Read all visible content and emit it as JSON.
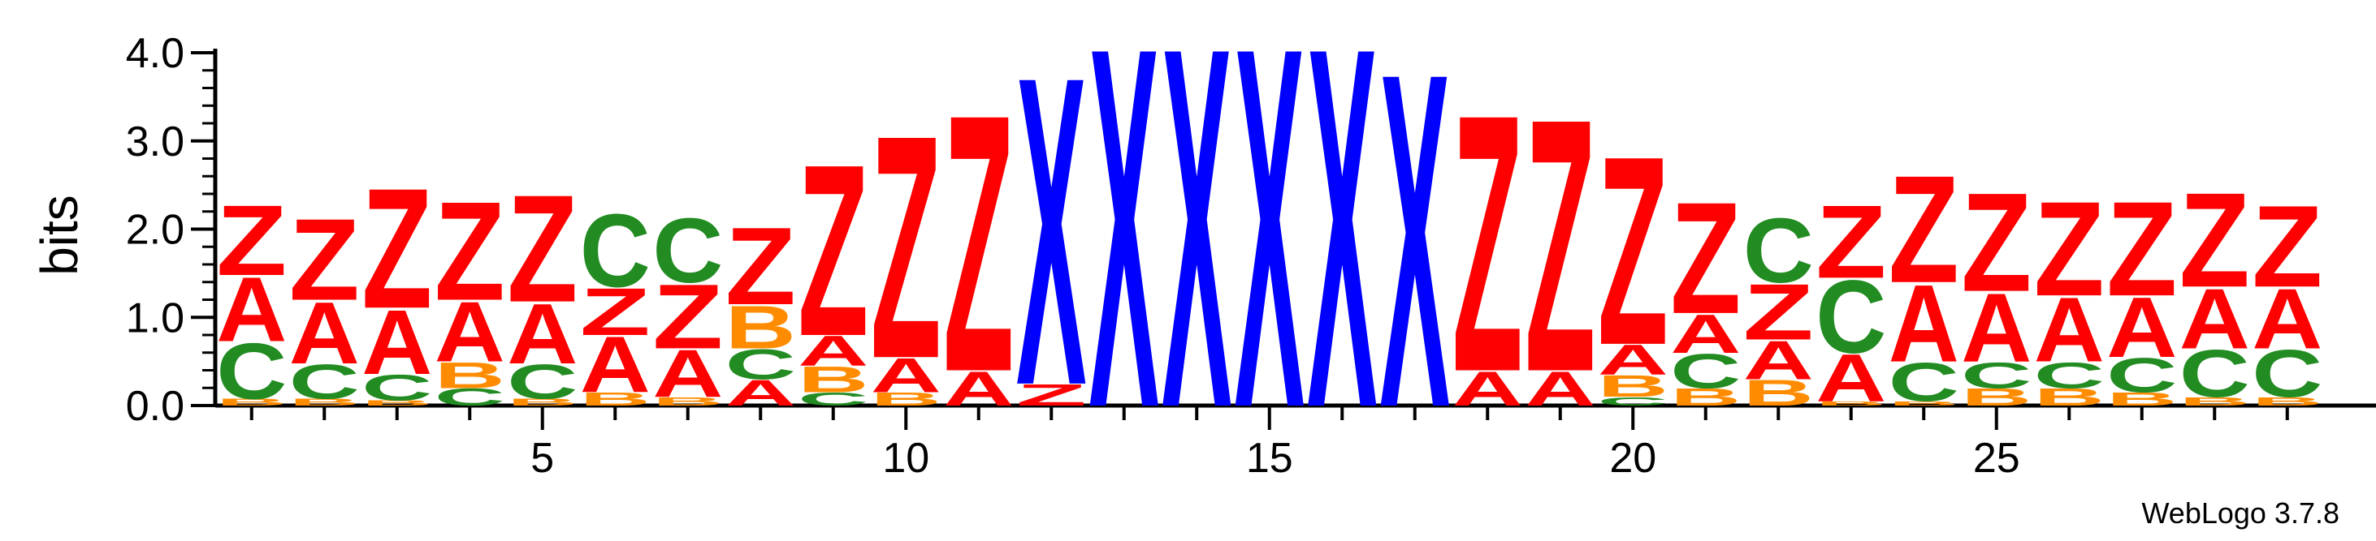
{
  "chart_data": {
    "type": "sequence_logo",
    "ylabel": "bits",
    "ylim": [
      0,
      4.0
    ],
    "y_ticks": [
      "0.0",
      "1.0",
      "2.0",
      "3.0",
      "4.0"
    ],
    "x_ticks": [
      5,
      10,
      15,
      20,
      25
    ],
    "credit": "WebLogo 3.7.8",
    "colors": {
      "Z": "#ff0000",
      "A": "#ff0000",
      "X": "#0000ff",
      "C": "#228b22",
      "B": "#ff8c00"
    },
    "positions": [
      {
        "pos": 1,
        "stack": [
          [
            "B",
            0.08
          ],
          [
            "C",
            0.65
          ],
          [
            "A",
            0.75
          ],
          [
            "Z",
            0.82
          ]
        ]
      },
      {
        "pos": 2,
        "stack": [
          [
            "B",
            0.08
          ],
          [
            "C",
            0.4
          ],
          [
            "A",
            0.72
          ],
          [
            "Z",
            0.95
          ]
        ]
      },
      {
        "pos": 3,
        "stack": [
          [
            "B",
            0.06
          ],
          [
            "C",
            0.3
          ],
          [
            "A",
            0.75
          ],
          [
            "Z",
            1.4
          ]
        ]
      },
      {
        "pos": 4,
        "stack": [
          [
            "C",
            0.2
          ],
          [
            "B",
            0.3
          ],
          [
            "A",
            0.7
          ],
          [
            "Z",
            1.15
          ]
        ]
      },
      {
        "pos": 5,
        "stack": [
          [
            "B",
            0.08
          ],
          [
            "C",
            0.4
          ],
          [
            "A",
            0.7
          ],
          [
            "Z",
            1.25
          ]
        ]
      },
      {
        "pos": 6,
        "stack": [
          [
            "B",
            0.15
          ],
          [
            "A",
            0.65
          ],
          [
            "Z",
            0.55
          ],
          [
            "C",
            0.85
          ]
        ]
      },
      {
        "pos": 7,
        "stack": [
          [
            "B",
            0.1
          ],
          [
            "A",
            0.55
          ],
          [
            "Z",
            0.75
          ],
          [
            "C",
            0.75
          ]
        ]
      },
      {
        "pos": 8,
        "stack": [
          [
            "A",
            0.3
          ],
          [
            "C",
            0.35
          ],
          [
            "B",
            0.5
          ],
          [
            "Z",
            0.9
          ]
        ]
      },
      {
        "pos": 9,
        "stack": [
          [
            "C",
            0.15
          ],
          [
            "B",
            0.3
          ],
          [
            "A",
            0.35
          ],
          [
            "Z",
            2.0
          ]
        ]
      },
      {
        "pos": 10,
        "stack": [
          [
            "B",
            0.15
          ],
          [
            "A",
            0.4
          ],
          [
            "Z",
            2.6
          ]
        ]
      },
      {
        "pos": 11,
        "stack": [
          [
            "A",
            0.4
          ],
          [
            "Z",
            3.0
          ]
        ]
      },
      {
        "pos": 12,
        "stack": [
          [
            "Z",
            0.25
          ],
          [
            "X",
            3.6
          ]
        ]
      },
      {
        "pos": 13,
        "stack": [
          [
            "X",
            4.2
          ]
        ]
      },
      {
        "pos": 14,
        "stack": [
          [
            "X",
            4.2
          ]
        ]
      },
      {
        "pos": 15,
        "stack": [
          [
            "X",
            4.2
          ]
        ]
      },
      {
        "pos": 16,
        "stack": [
          [
            "X",
            4.2
          ]
        ]
      },
      {
        "pos": 17,
        "stack": [
          [
            "X",
            3.9
          ]
        ]
      },
      {
        "pos": 18,
        "stack": [
          [
            "A",
            0.4
          ],
          [
            "Z",
            3.0
          ]
        ]
      },
      {
        "pos": 19,
        "stack": [
          [
            "A",
            0.4
          ],
          [
            "Z",
            2.95
          ]
        ]
      },
      {
        "pos": 20,
        "stack": [
          [
            "C",
            0.1
          ],
          [
            "B",
            0.25
          ],
          [
            "A",
            0.35
          ],
          [
            "Z",
            2.2
          ]
        ]
      },
      {
        "pos": 21,
        "stack": [
          [
            "B",
            0.2
          ],
          [
            "C",
            0.4
          ],
          [
            "A",
            0.45
          ],
          [
            "Z",
            1.3
          ]
        ]
      },
      {
        "pos": 22,
        "stack": [
          [
            "B",
            0.3
          ],
          [
            "A",
            0.45
          ],
          [
            "Z",
            0.65
          ],
          [
            "C",
            0.75
          ]
        ]
      },
      {
        "pos": 23,
        "stack": [
          [
            "B",
            0.05
          ],
          [
            "A",
            0.55
          ],
          [
            "C",
            0.85
          ],
          [
            "Z",
            0.85
          ]
        ]
      },
      {
        "pos": 24,
        "stack": [
          [
            "B",
            0.05
          ],
          [
            "C",
            0.45
          ],
          [
            "A",
            0.9
          ],
          [
            "Z",
            1.25
          ]
        ]
      },
      {
        "pos": 25,
        "stack": [
          [
            "B",
            0.2
          ],
          [
            "C",
            0.3
          ],
          [
            "A",
            0.8
          ],
          [
            "Z",
            1.15
          ]
        ]
      },
      {
        "pos": 26,
        "stack": [
          [
            "B",
            0.2
          ],
          [
            "C",
            0.3
          ],
          [
            "A",
            0.75
          ],
          [
            "Z",
            1.1
          ]
        ]
      },
      {
        "pos": 27,
        "stack": [
          [
            "B",
            0.15
          ],
          [
            "C",
            0.4
          ],
          [
            "A",
            0.7
          ],
          [
            "Z",
            1.1
          ]
        ]
      },
      {
        "pos": 28,
        "stack": [
          [
            "B",
            0.1
          ],
          [
            "C",
            0.55
          ],
          [
            "A",
            0.7
          ],
          [
            "Z",
            1.1
          ]
        ]
      },
      {
        "pos": 29,
        "stack": [
          [
            "B",
            0.1
          ],
          [
            "C",
            0.55
          ],
          [
            "A",
            0.7
          ],
          [
            "Z",
            0.95
          ]
        ]
      }
    ]
  }
}
